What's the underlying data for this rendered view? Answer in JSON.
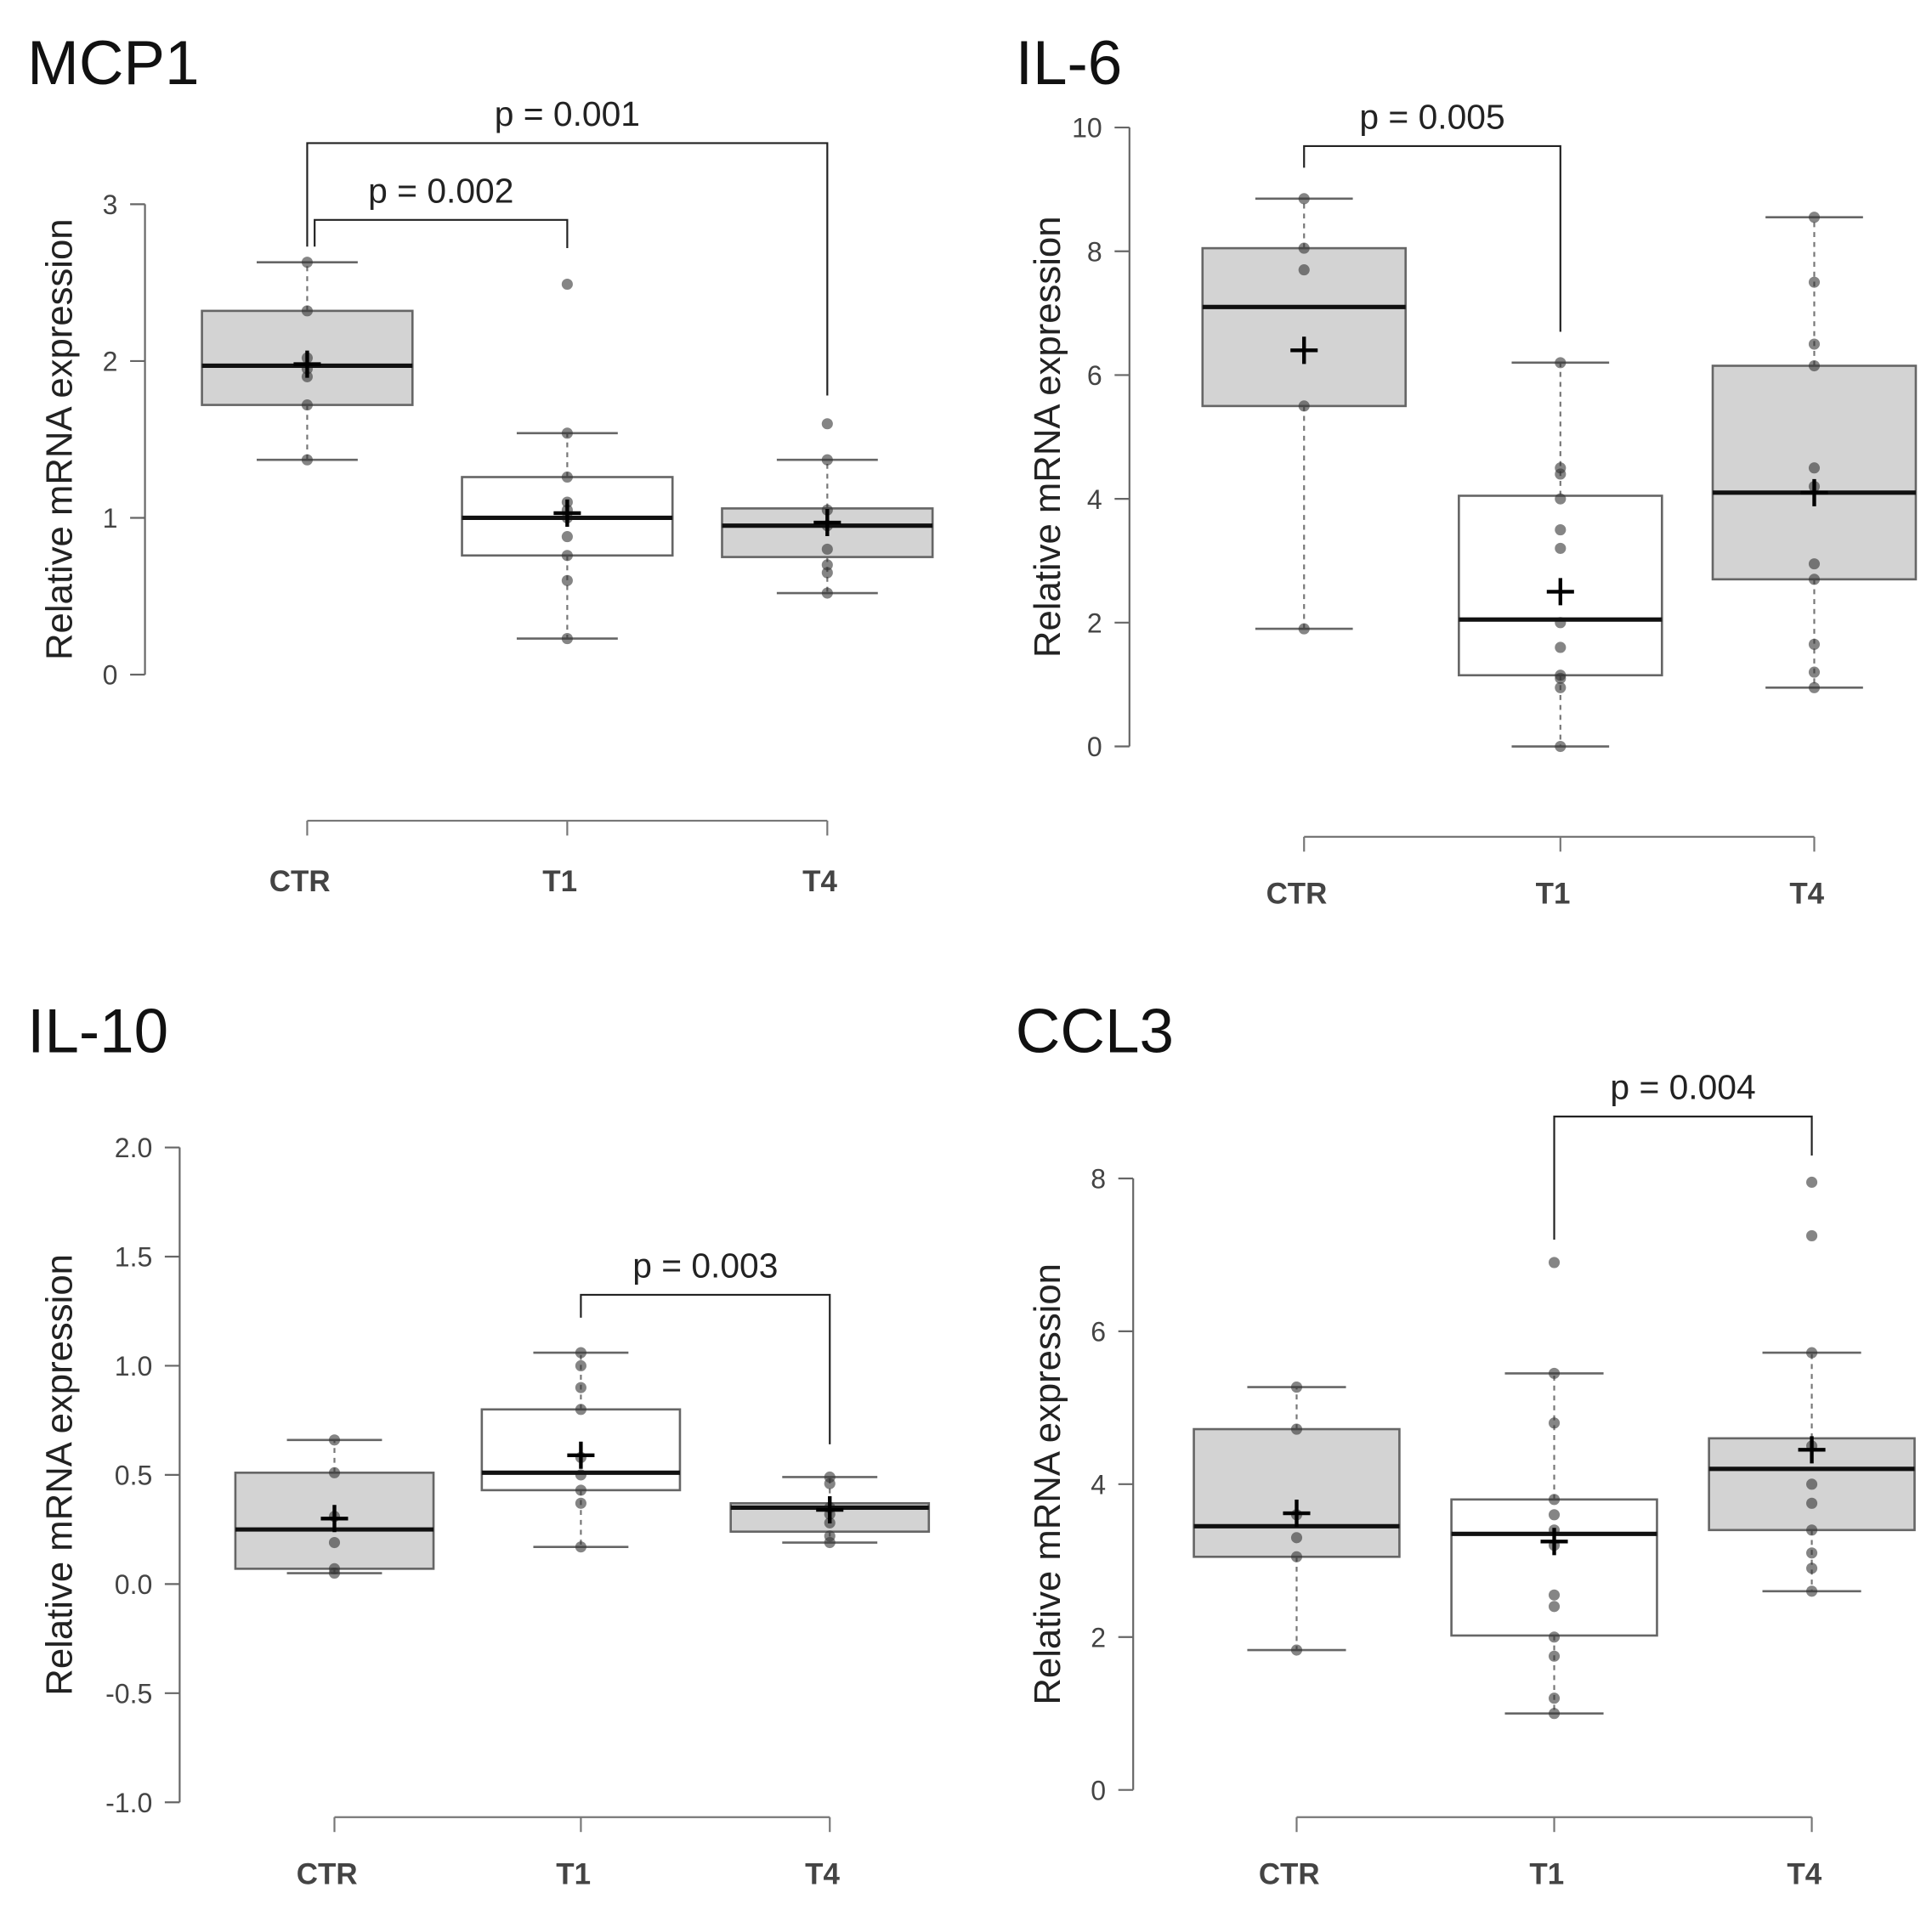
{
  "chart_data": [
    {
      "type": "box",
      "title": "MCP1",
      "ylabel": "Relative mRNA expression",
      "xlabel": "",
      "categories": [
        "CTR",
        "T1",
        "T4"
      ],
      "fills": [
        "#d3d3d3",
        "#ffffff",
        "#d3d3d3"
      ],
      "ylim": [
        0,
        3
      ],
      "yticks": [
        "0",
        "1",
        "2",
        "3"
      ],
      "ytick_values": [
        0,
        1,
        2,
        3
      ],
      "boxes": [
        {
          "q1": 1.72,
          "median": 1.97,
          "q3": 2.32,
          "whisker_low": 1.37,
          "whisker_high": 2.63,
          "mean": 1.98,
          "points": [
            2.63,
            2.32,
            2.02,
            1.95,
            1.9,
            1.72,
            1.37
          ]
        },
        {
          "q1": 0.76,
          "median": 1.0,
          "q3": 1.26,
          "whisker_low": 0.23,
          "whisker_high": 1.54,
          "mean": 1.03,
          "points": [
            2.49,
            1.54,
            1.26,
            1.1,
            1.05,
            1.0,
            0.88,
            0.76,
            0.6,
            0.23
          ]
        },
        {
          "q1": 0.75,
          "median": 0.95,
          "q3": 1.06,
          "whisker_low": 0.52,
          "whisker_high": 1.37,
          "mean": 0.97,
          "points": [
            1.6,
            1.37,
            1.05,
            0.95,
            0.8,
            0.7,
            0.65,
            0.52
          ]
        }
      ],
      "comparisons": [
        {
          "from": 0,
          "to": 2,
          "label": "p = 0.001",
          "level": 3.39,
          "end_from": 2.73,
          "end_to": 1.78
        },
        {
          "from": 0,
          "to": 1,
          "label": "p = 0.002",
          "level": 2.9,
          "end_from": 2.73,
          "end_to": 2.72
        }
      ]
    },
    {
      "type": "box",
      "title": "IL-6",
      "ylabel": "Relative mRNA expression",
      "xlabel": "",
      "categories": [
        "CTR",
        "T1",
        "T4"
      ],
      "fills": [
        "#d3d3d3",
        "#ffffff",
        "#d3d3d3"
      ],
      "ylim": [
        0,
        10
      ],
      "yticks": [
        "0",
        "2",
        "4",
        "6",
        "8",
        "10"
      ],
      "ytick_values": [
        0,
        2,
        4,
        6,
        8,
        10
      ],
      "boxes": [
        {
          "q1": 5.5,
          "median": 7.1,
          "q3": 8.05,
          "whisker_low": 1.9,
          "whisker_high": 8.85,
          "mean": 6.4,
          "points": [
            8.85,
            8.05,
            7.7,
            5.5,
            1.9
          ]
        },
        {
          "q1": 1.15,
          "median": 2.05,
          "q3": 4.05,
          "whisker_low": 0.0,
          "whisker_high": 6.2,
          "mean": 2.5,
          "points": [
            6.2,
            4.5,
            4.4,
            4.0,
            3.5,
            3.2,
            2.0,
            1.6,
            1.15,
            1.1,
            0.95,
            0.0
          ]
        },
        {
          "q1": 2.7,
          "median": 4.1,
          "q3": 6.15,
          "whisker_low": 0.95,
          "whisker_high": 8.55,
          "mean": 4.1,
          "points": [
            8.55,
            7.5,
            6.5,
            6.15,
            4.5,
            4.2,
            2.95,
            2.7,
            1.65,
            1.2,
            0.95
          ]
        }
      ],
      "comparisons": [
        {
          "from": 0,
          "to": 1,
          "label": "p = 0.005",
          "level": 9.7,
          "end_from": 9.35,
          "end_to": 6.7
        }
      ]
    },
    {
      "type": "box",
      "title": "IL-10",
      "ylabel": "Relative mRNA expression",
      "xlabel": "",
      "categories": [
        "CTR",
        "T1",
        "T4"
      ],
      "fills": [
        "#d3d3d3",
        "#ffffff",
        "#d3d3d3"
      ],
      "ylim": [
        -1.0,
        2.0
      ],
      "yticks": [
        "-1.0",
        "-0.5",
        "0.0",
        "0.5",
        "1.0",
        "1.5",
        "2.0"
      ],
      "ytick_values": [
        -1.0,
        -0.5,
        0.0,
        0.5,
        1.0,
        1.5,
        2.0
      ],
      "boxes": [
        {
          "q1": 0.07,
          "median": 0.25,
          "q3": 0.51,
          "whisker_low": 0.05,
          "whisker_high": 0.66,
          "mean": 0.3,
          "points": [
            0.66,
            0.51,
            0.31,
            0.19,
            0.07,
            0.05
          ]
        },
        {
          "q1": 0.43,
          "median": 0.51,
          "q3": 0.8,
          "whisker_low": 0.17,
          "whisker_high": 1.06,
          "mean": 0.59,
          "points": [
            1.06,
            1.0,
            0.9,
            0.8,
            0.58,
            0.5,
            0.43,
            0.37,
            0.17
          ]
        },
        {
          "q1": 0.24,
          "median": 0.35,
          "q3": 0.37,
          "whisker_low": 0.19,
          "whisker_high": 0.49,
          "mean": 0.34,
          "points": [
            0.49,
            0.46,
            0.35,
            0.32,
            0.28,
            0.22,
            0.19
          ]
        }
      ],
      "comparisons": [
        {
          "from": 1,
          "to": 2,
          "label": "p = 0.003",
          "level": 1.325,
          "end_from": 1.22,
          "end_to": 0.64
        }
      ]
    },
    {
      "type": "box",
      "title": "CCL3",
      "ylabel": "Relative mRNA expression",
      "xlabel": "",
      "categories": [
        "CTR",
        "T1",
        "T4"
      ],
      "fills": [
        "#d3d3d3",
        "#ffffff",
        "#d3d3d3"
      ],
      "ylim": [
        0,
        8
      ],
      "yticks": [
        "0",
        "2",
        "4",
        "6",
        "8"
      ],
      "ytick_values": [
        0,
        2,
        4,
        6,
        8
      ],
      "boxes": [
        {
          "q1": 3.05,
          "median": 3.45,
          "q3": 4.72,
          "whisker_low": 1.83,
          "whisker_high": 5.27,
          "mean": 3.62,
          "points": [
            5.27,
            4.72,
            3.6,
            3.3,
            3.05,
            1.83
          ]
        },
        {
          "q1": 2.02,
          "median": 3.35,
          "q3": 3.8,
          "whisker_low": 1.0,
          "whisker_high": 5.45,
          "mean": 3.25,
          "points": [
            6.9,
            5.45,
            4.8,
            3.8,
            3.6,
            3.4,
            3.2,
            2.55,
            2.4,
            2.0,
            1.75,
            1.2,
            1.0
          ]
        },
        {
          "q1": 3.4,
          "median": 4.2,
          "q3": 4.6,
          "whisker_low": 2.6,
          "whisker_high": 5.72,
          "mean": 4.45,
          "points": [
            7.95,
            7.25,
            5.72,
            4.5,
            4.0,
            3.75,
            3.4,
            3.1,
            2.9,
            2.6
          ]
        }
      ],
      "comparisons": [
        {
          "from": 1,
          "to": 2,
          "label": "p = 0.004",
          "level": 8.81,
          "end_from": 7.2,
          "end_to": 8.3
        }
      ]
    }
  ]
}
